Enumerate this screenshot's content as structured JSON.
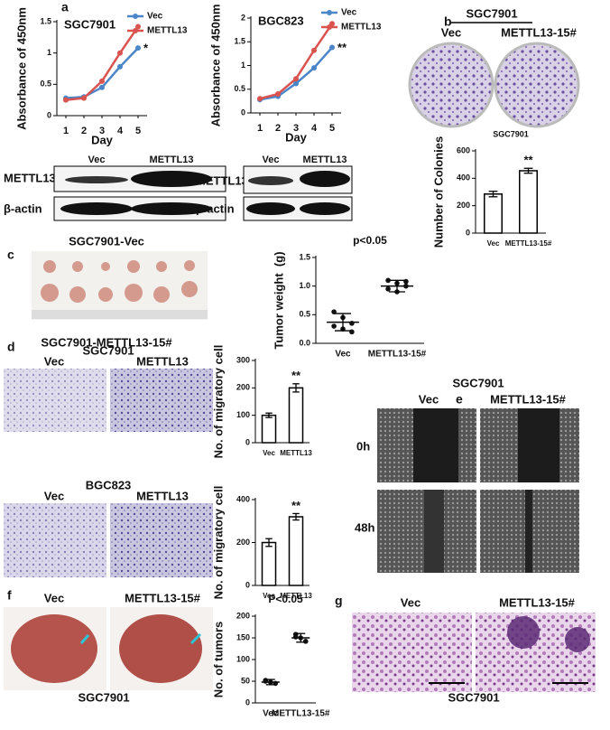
{
  "figure": {
    "panel_letters": [
      "a",
      "b",
      "c",
      "d",
      "e",
      "f",
      "g"
    ],
    "a_blots": [
      {
        "headers": [
          "Vec",
          "METTL13"
        ],
        "rows": [
          "METTL13",
          "β-actin"
        ]
      },
      {
        "headers": [
          "Vec",
          "METTL13"
        ],
        "rows": [
          "METTL13",
          "β-actin"
        ]
      }
    ],
    "b": {
      "title": "SGC7901",
      "headers": [
        "Vec",
        "METTL13-15#"
      ]
    },
    "c": {
      "top": "SGC7901-Vec",
      "bottom": "SGC7901-METTL13-15#"
    },
    "d": {
      "groups": [
        {
          "cell": "SGC7901",
          "headers": [
            "Vec",
            "METTL13"
          ]
        },
        {
          "cell": "BGC823",
          "headers": [
            "Vec",
            "METTL13"
          ]
        }
      ]
    },
    "e": {
      "title": "SGC7901",
      "headers": [
        "Vec",
        "METTL13-15#"
      ],
      "rows": [
        "0h",
        "48h"
      ]
    },
    "f": {
      "headers": [
        "Vec",
        "METTL13-15#"
      ],
      "caption": "SGC7901"
    },
    "g": {
      "headers": [
        "Vec",
        "METTL13-15#"
      ],
      "caption": "SGC7901"
    }
  },
  "chart_data": [
    {
      "type": "line",
      "title": "SGC7901",
      "x_label": "Day",
      "y_label": "Absorbance of 450nm",
      "x": [
        1,
        2,
        3,
        4,
        5
      ],
      "xlim": [
        0.5,
        5.5
      ],
      "xticks": [
        1,
        2,
        3,
        4,
        5
      ],
      "ylim": [
        0,
        1.5
      ],
      "yticks": [
        0,
        0.5,
        1,
        1.5
      ],
      "annotation": "*",
      "series": [
        {
          "name": "Vec",
          "color": "#4a86c8",
          "values": [
            0.28,
            0.3,
            0.45,
            0.78,
            1.08
          ]
        },
        {
          "name": "METTL13",
          "color": "#d9534f",
          "values": [
            0.25,
            0.28,
            0.55,
            1.0,
            1.42
          ]
        }
      ]
    },
    {
      "type": "line",
      "title": "BGC823",
      "x_label": "Day",
      "y_label": "Absorbance of 450nm",
      "x": [
        1,
        2,
        3,
        4,
        5
      ],
      "xlim": [
        0.5,
        5.5
      ],
      "xticks": [
        1,
        2,
        3,
        4,
        5
      ],
      "ylim": [
        0,
        2
      ],
      "yticks": [
        0,
        0.5,
        1,
        1.5,
        2
      ],
      "annotation": "**",
      "series": [
        {
          "name": "Vec",
          "color": "#4a86c8",
          "values": [
            0.28,
            0.35,
            0.62,
            0.95,
            1.38
          ]
        },
        {
          "name": "METTL13",
          "color": "#d9534f",
          "values": [
            0.3,
            0.4,
            0.72,
            1.32,
            1.88
          ]
        }
      ]
    },
    {
      "type": "bar",
      "title": "SGC7901",
      "y_label": "Number of Colonies",
      "categories": [
        "Vec",
        "METTL13-15#"
      ],
      "values": [
        285,
        455
      ],
      "errors": [
        20,
        18
      ],
      "ylim": [
        0,
        600
      ],
      "yticks": [
        0,
        200,
        400,
        600
      ],
      "annotation": "**"
    },
    {
      "type": "dot",
      "title": "p<0.05",
      "y_label": "Tumor weight  (g)",
      "categories": [
        "Vec",
        "METTL13-15#"
      ],
      "values": [
        0.37,
        1.0
      ],
      "errors": [
        0.15,
        0.1
      ],
      "points": [
        [
          0.55,
          0.45,
          0.35,
          0.3,
          0.25,
          0.2
        ],
        [
          1.1,
          1.05,
          1.0,
          0.95,
          0.9,
          1.08
        ]
      ],
      "ylim": [
        0,
        1.5
      ],
      "yticks": [
        {
          "value": 0,
          "label": "0.0"
        },
        {
          "value": 0.5,
          "label": "0.5"
        },
        {
          "value": 1,
          "label": "1.0"
        },
        {
          "value": 1.5,
          "label": "1.5"
        }
      ]
    },
    {
      "type": "bar",
      "y_label": "No. of migratory cell",
      "categories": [
        "Vec",
        "METTL13"
      ],
      "values": [
        100,
        200
      ],
      "errors": [
        8,
        15
      ],
      "ylim": [
        0,
        300
      ],
      "yticks": [
        0,
        100,
        200,
        300
      ],
      "annotation": "**"
    },
    {
      "type": "bar",
      "y_label": "No. of migratory cell",
      "categories": [
        "Vec",
        "METTL13"
      ],
      "values": [
        200,
        320
      ],
      "errors": [
        18,
        15
      ],
      "ylim": [
        0,
        400
      ],
      "yticks": [
        0,
        200,
        400
      ],
      "annotation": "**"
    },
    {
      "type": "dot",
      "title": "P<0.05",
      "y_label": "No. of tumors",
      "categories": [
        "Vec",
        "METTL13-15#"
      ],
      "values": [
        48,
        150
      ],
      "errors": [
        6,
        10
      ],
      "points": [
        [
          52,
          48,
          45,
          50
        ],
        [
          158,
          150,
          142,
          152
        ]
      ],
      "ylim": [
        0,
        200
      ],
      "yticks": [
        0,
        50,
        100,
        150,
        200
      ]
    }
  ]
}
